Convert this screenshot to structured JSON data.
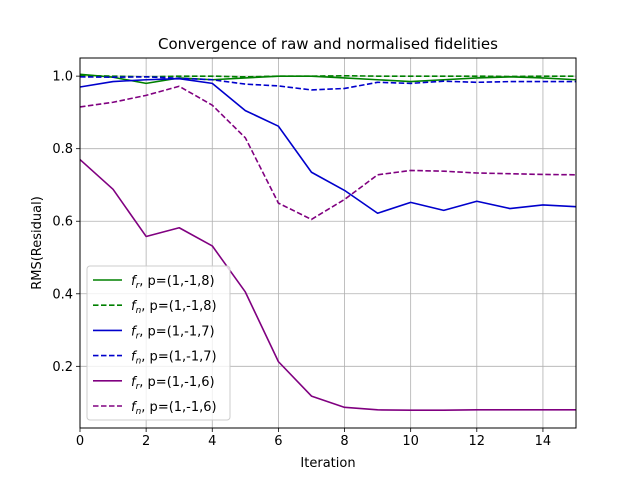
{
  "chart_data": {
    "type": "line",
    "title": "Convergence of raw and normalised fidelities",
    "xlabel": "Iteration",
    "ylabel": "RMS(Residual)",
    "xlim": [
      0,
      15
    ],
    "ylim": [
      0.03,
      1.05
    ],
    "xticks": [
      0,
      2,
      4,
      6,
      8,
      10,
      12,
      14
    ],
    "yticks": [
      0.2,
      0.4,
      0.6,
      0.8,
      1.0
    ],
    "xtick_labels": [
      "0",
      "2",
      "4",
      "6",
      "8",
      "10",
      "12",
      "14"
    ],
    "ytick_labels": [
      "0.2",
      "0.4",
      "0.6",
      "0.8",
      "1.0"
    ],
    "grid": true,
    "legend_position": "lower-left",
    "x": [
      0,
      1,
      2,
      3,
      4,
      5,
      6,
      7,
      8,
      9,
      10,
      11,
      12,
      13,
      14,
      15
    ],
    "series": [
      {
        "name": "f_r, p=(1,-1,8)",
        "sym": "f",
        "sub": "r",
        "suffix": ", p=(1,-1,8)",
        "color": "#008000",
        "dash": false,
        "values": [
          1.005,
          0.997,
          0.98,
          0.995,
          0.99,
          0.995,
          1.0,
          1.0,
          0.995,
          0.99,
          0.985,
          0.99,
          0.995,
          0.998,
          0.995,
          0.99
        ]
      },
      {
        "name": "f_n, p=(1,-1,8)",
        "sym": "f",
        "sub": "n",
        "suffix": ", p=(1,-1,8)",
        "color": "#008000",
        "dash": true,
        "values": [
          1.002,
          1.0,
          0.998,
          1.0,
          1.0,
          0.998,
          1.0,
          1.0,
          1.001,
          1.0,
          1.0,
          1.0,
          1.0,
          0.999,
          1.0,
          1.0
        ]
      },
      {
        "name": "f_r, p=(1,-1,7)",
        "sym": "f",
        "sub": "r",
        "suffix": ", p=(1,-1,7)",
        "color": "#0000cc",
        "dash": false,
        "values": [
          0.97,
          0.985,
          0.99,
          0.993,
          0.98,
          0.905,
          0.862,
          0.735,
          0.685,
          0.622,
          0.652,
          0.63,
          0.655,
          0.635,
          0.645,
          0.64
        ]
      },
      {
        "name": "f_n, p=(1,-1,7)",
        "sym": "f",
        "sub": "n",
        "suffix": ", p=(1,-1,7)",
        "color": "#0000cc",
        "dash": true,
        "values": [
          0.998,
          0.997,
          0.998,
          0.994,
          0.99,
          0.978,
          0.973,
          0.962,
          0.966,
          0.983,
          0.98,
          0.986,
          0.983,
          0.985,
          0.985,
          0.985
        ]
      },
      {
        "name": "f_r, p=(1,-1,6)",
        "sym": "f",
        "sub": "r",
        "suffix": ", p=(1,-1,6)",
        "color": "#800080",
        "dash": false,
        "values": [
          0.77,
          0.688,
          0.558,
          0.582,
          0.532,
          0.405,
          0.213,
          0.118,
          0.087,
          0.08,
          0.079,
          0.079,
          0.08,
          0.08,
          0.08,
          0.08
        ]
      },
      {
        "name": "f_n, p=(1,-1,6)",
        "sym": "f",
        "sub": "n",
        "suffix": ", p=(1,-1,6)",
        "color": "#800080",
        "dash": true,
        "values": [
          0.915,
          0.928,
          0.947,
          0.972,
          0.92,
          0.83,
          0.65,
          0.605,
          0.66,
          0.728,
          0.74,
          0.738,
          0.733,
          0.731,
          0.729,
          0.728
        ]
      }
    ]
  }
}
